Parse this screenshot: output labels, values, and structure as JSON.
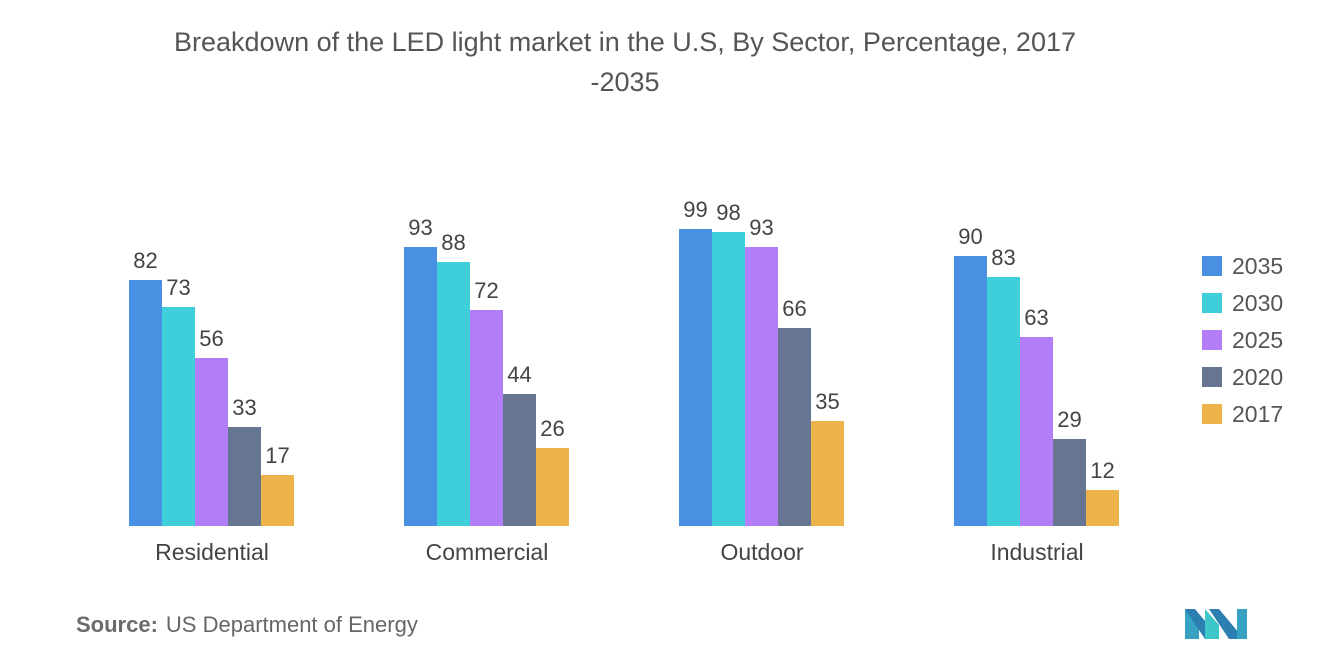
{
  "title_line1": "Breakdown of the LED light market in the U.S, By Sector, Percentage, 2017",
  "title_line2": "-2035",
  "source": {
    "label": "Source:",
    "text": "US Department of Energy"
  },
  "chart_data": {
    "type": "bar",
    "title": "Breakdown of the LED light market in the U.S, By Sector, Percentage, 2017 -2035",
    "xlabel": "",
    "ylabel": "",
    "ylim": [
      0,
      100
    ],
    "grid": false,
    "legend_position": "right",
    "categories": [
      "Residential",
      "Commercial",
      "Outdoor",
      "Industrial"
    ],
    "series": [
      {
        "name": "2035",
        "color": "#4a90e2",
        "values": [
          82,
          93,
          99,
          90
        ]
      },
      {
        "name": "2030",
        "color": "#3ecfda",
        "values": [
          73,
          88,
          98,
          83
        ]
      },
      {
        "name": "2025",
        "color": "#b27ef8",
        "values": [
          56,
          72,
          93,
          63
        ]
      },
      {
        "name": "2020",
        "color": "#657592",
        "values": [
          33,
          44,
          66,
          29
        ]
      },
      {
        "name": "2017",
        "color": "#ecb34b",
        "values": [
          17,
          26,
          35,
          12
        ]
      }
    ]
  }
}
